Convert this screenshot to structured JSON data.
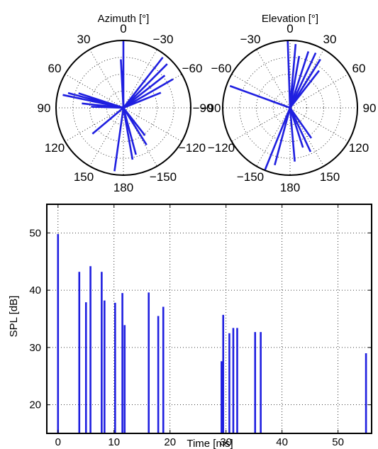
{
  "chart_data": [
    {
      "type": "polar-compass",
      "title": "Azimuth [°]",
      "angle_labels": [
        {
          "angle": 0,
          "label": "0"
        },
        {
          "angle": -30,
          "label": "−30"
        },
        {
          "angle": -60,
          "label": "−60"
        },
        {
          "angle": -90,
          "label": "−90"
        },
        {
          "angle": -120,
          "label": "−120"
        },
        {
          "angle": -150,
          "label": "−150"
        },
        {
          "angle": 180,
          "label": "180"
        },
        {
          "angle": 150,
          "label": "150"
        },
        {
          "angle": 120,
          "label": "120"
        },
        {
          "angle": 90,
          "label": "90"
        },
        {
          "angle": 60,
          "label": "60"
        },
        {
          "angle": 30,
          "label": "30"
        }
      ],
      "angle_direction": "counterclockwise",
      "zero_direction": "top",
      "rlim": [
        0,
        1
      ],
      "grid": true,
      "series_color": "#1f1fe0",
      "rays": [
        {
          "angle": 0,
          "r": 1.0
        },
        {
          "angle": 3,
          "r": 0.72
        },
        {
          "angle": 1,
          "r": 0.55
        },
        {
          "angle": -38,
          "r": 0.95
        },
        {
          "angle": -45,
          "r": 0.92
        },
        {
          "angle": -52,
          "r": 0.78
        },
        {
          "angle": -60,
          "r": 0.85
        },
        {
          "angle": -68,
          "r": 0.6
        },
        {
          "angle": 75,
          "r": 0.85
        },
        {
          "angle": 72,
          "r": 0.7
        },
        {
          "angle": 78,
          "r": 0.92
        },
        {
          "angle": 84,
          "r": 0.62
        },
        {
          "angle": 88,
          "r": 0.48
        },
        {
          "angle": 130,
          "r": 0.6
        },
        {
          "angle": -170,
          "r": 0.78
        },
        {
          "angle": -165,
          "r": 0.72
        },
        {
          "angle": 172,
          "r": 0.95
        },
        {
          "angle": -148,
          "r": 0.65
        },
        {
          "angle": -142,
          "r": 0.52
        }
      ]
    },
    {
      "type": "polar-compass",
      "title": "Elevation [°]",
      "angle_labels": [
        {
          "angle": 0,
          "label": "0"
        },
        {
          "angle": 30,
          "label": "30"
        },
        {
          "angle": 60,
          "label": "60"
        },
        {
          "angle": 90,
          "label": "90"
        },
        {
          "angle": 120,
          "label": "120"
        },
        {
          "angle": 150,
          "label": "150"
        },
        {
          "angle": 180,
          "label": "180"
        },
        {
          "angle": -150,
          "label": "−150"
        },
        {
          "angle": -120,
          "label": "−120"
        },
        {
          "angle": -90,
          "label": "−90"
        },
        {
          "angle": -60,
          "label": "−60"
        },
        {
          "angle": -30,
          "label": "−30"
        }
      ],
      "angle_direction": "clockwise",
      "zero_direction": "top",
      "rlim": [
        0,
        1
      ],
      "grid": true,
      "series_color": "#1f1fe0",
      "rays": [
        {
          "angle": -2,
          "r": 1.0
        },
        {
          "angle": 5,
          "r": 0.95
        },
        {
          "angle": 10,
          "r": 0.78
        },
        {
          "angle": 18,
          "r": 0.88
        },
        {
          "angle": 25,
          "r": 0.9
        },
        {
          "angle": 32,
          "r": 0.85
        },
        {
          "angle": 38,
          "r": 0.7
        },
        {
          "angle": -70,
          "r": 0.95
        },
        {
          "angle": 145,
          "r": 0.55
        },
        {
          "angle": 155,
          "r": 0.72
        },
        {
          "angle": 162,
          "r": 0.62
        },
        {
          "angle": 175,
          "r": 0.8
        },
        {
          "angle": -158,
          "r": 1.0
        },
        {
          "angle": -165,
          "r": 0.88
        }
      ]
    },
    {
      "type": "bar",
      "xlabel": "Time [ms]",
      "ylabel": "SPL [dB]",
      "xlim": [
        -2,
        56
      ],
      "ylim": [
        15,
        55
      ],
      "baseline": 15,
      "xticks": [
        0,
        10,
        20,
        30,
        40,
        50
      ],
      "yticks": [
        20,
        30,
        40,
        50
      ],
      "grid": true,
      "series_color": "#1f1fe0",
      "x": [
        0,
        3.8,
        5,
        5.8,
        7.8,
        8.3,
        10.2,
        11.5,
        11.9,
        16.2,
        17.9,
        18.8,
        29.2,
        29.5,
        30.6,
        31.3,
        32,
        35.2,
        36.2,
        55
      ],
      "y": [
        49.8,
        43.2,
        37.9,
        44.2,
        43.2,
        38.2,
        37.8,
        39.5,
        33.9,
        39.6,
        35.5,
        37.1,
        27.6,
        35.7,
        32.5,
        33.4,
        33.4,
        32.7,
        32.7,
        29
      ]
    }
  ]
}
